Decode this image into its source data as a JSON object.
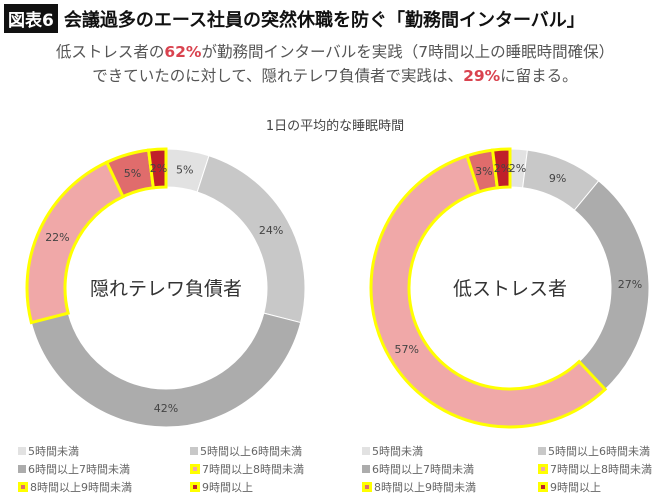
{
  "header": {
    "tag": "図表6",
    "title": "会議過多のエース社員の突然休職を防ぐ「勤務間インターバル」"
  },
  "subtitle": {
    "l1a": "低ストレス者の",
    "l1b": "62%",
    "l1c": "が勤務間インターバルを実践（7時間以上の睡眠時間確保）",
    "l2a": "できていたのに対して、隠れテレワ負債者で実践は、",
    "l2b": "29%",
    "l2c": "に留まる。"
  },
  "chart_data": [
    {
      "type": "pie",
      "donut": true,
      "title": "1日の平均的な睡眠時間",
      "center_label": "隠れテレワ負債者",
      "categories": [
        "5時間未満",
        "5時間以上6時間未満",
        "6時間以上7時間未満",
        "7時間以上8時間未満",
        "8時間以上9時間未満",
        "9時間以上"
      ],
      "values": [
        5,
        24,
        42,
        22,
        5,
        2
      ],
      "labels": [
        "5%",
        "24%",
        "42%",
        "22%",
        "5%",
        "2%"
      ],
      "colors": [
        "#e2e2e2",
        "#c8c8c8",
        "#acacac",
        "#f0a8a8",
        "#e06c6c",
        "#c0202a"
      ],
      "highlighted": [
        false,
        false,
        false,
        true,
        true,
        true
      ],
      "highlight_color": "#ffff00",
      "legend": "bottom"
    },
    {
      "type": "pie",
      "donut": true,
      "title": "1日の平均的な睡眠時間",
      "center_label": "低ストレス者",
      "categories": [
        "5時間未満",
        "5時間以上6時間未満",
        "6時間以上7時間未満",
        "7時間以上8時間未満",
        "8時間以上9時間未満",
        "9時間以上"
      ],
      "values": [
        2,
        9,
        27,
        57,
        3,
        2
      ],
      "labels": [
        "2%",
        "9%",
        "27%",
        "57%",
        "3%",
        "2%"
      ],
      "colors": [
        "#e2e2e2",
        "#c8c8c8",
        "#acacac",
        "#f0a8a8",
        "#e06c6c",
        "#c0202a"
      ],
      "highlighted": [
        false,
        false,
        false,
        true,
        true,
        true
      ],
      "highlight_color": "#ffff00",
      "legend": "bottom"
    }
  ]
}
